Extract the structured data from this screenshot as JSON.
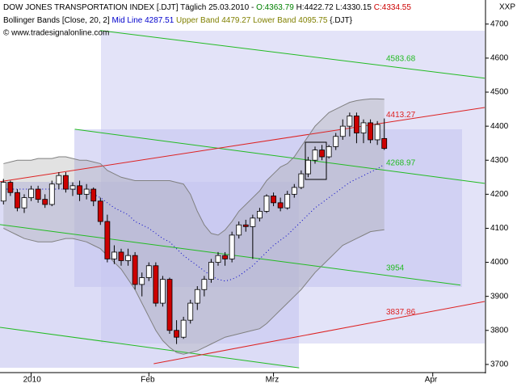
{
  "chart_data": {
    "type": "candlestick",
    "title": "DOW JONES TRANSPORTATION INDEX [.DJT]",
    "subtitle": "Täglich 25.03.2010 -",
    "ohlc_labels": [
      {
        "text": "O:4363.79",
        "color": "#008000"
      },
      {
        "text": "H:4422.72 L:4330.15",
        "color": "#000000"
      },
      {
        "text": "C:4334.55",
        "color": "#cc0000"
      }
    ],
    "indicator_labels": [
      {
        "text": "Bollinger Bands [Close, 20, 2]",
        "color": "#000000"
      },
      {
        "text": "Mid Line 4287.51",
        "color": "#0000cc"
      },
      {
        "text": "Upper Band 4479.27 Lower Band 4095.75",
        "color": "#808000"
      },
      {
        "text": "{.DJT}",
        "color": "#000000"
      }
    ],
    "copyright": "© www.tradesignalonline.com",
    "symbol": "XXP",
    "categories": [
      null,
      null,
      null,
      null,
      "2010",
      null,
      null,
      null,
      null,
      null,
      null,
      null,
      null,
      null,
      null,
      null,
      null,
      null,
      null,
      null,
      null,
      "Feb",
      null,
      null,
      null,
      null,
      null,
      null,
      null,
      null,
      null,
      null,
      null,
      null,
      null,
      null,
      null,
      null,
      null,
      "Mrz",
      null,
      null,
      null,
      null,
      null,
      null,
      null,
      null,
      null,
      null,
      null,
      null,
      null,
      null,
      null,
      null,
      null,
      null,
      null,
      null,
      null,
      null,
      "Apr",
      null,
      null,
      null,
      null,
      null,
      null,
      null
    ],
    "open": [
      4180,
      4235,
      4205,
      4160,
      4190,
      4215,
      4185,
      4170,
      4230,
      4255,
      4215,
      4225,
      4200,
      4215,
      4180,
      4120,
      4010,
      4030,
      4005,
      4020,
      3935,
      3955,
      3990,
      3880,
      3950,
      3800,
      3780,
      3830,
      3880,
      3920,
      3950,
      4000,
      4020,
      4010,
      4080,
      4110,
      4105,
      4130,
      4150,
      4195,
      4175,
      4160,
      4200,
      4220,
      4260,
      4300,
      4330,
      4310,
      4340,
      4370,
      4400,
      4430,
      4380,
      4410,
      4360,
      4363.79,
      null,
      null,
      null,
      null,
      null,
      null,
      null,
      null,
      null,
      null,
      null,
      null,
      null,
      null
    ],
    "high": [
      4245,
      4240,
      4215,
      4200,
      4225,
      4225,
      4200,
      4240,
      4265,
      4265,
      4235,
      4240,
      4230,
      4220,
      4190,
      4140,
      4050,
      4040,
      4040,
      4030,
      3970,
      4000,
      4000,
      3960,
      3955,
      3830,
      3840,
      3890,
      3930,
      3960,
      4010,
      4030,
      4030,
      4090,
      4120,
      4125,
      4140,
      4160,
      4200,
      4205,
      4190,
      4210,
      4230,
      4270,
      4310,
      4340,
      4345,
      4345,
      4380,
      4420,
      4440,
      4440,
      4420,
      4420,
      4415,
      4422.72,
      null,
      null,
      null,
      null,
      null,
      null,
      null,
      null,
      null,
      null,
      null,
      null,
      null,
      null
    ],
    "low": [
      4170,
      4195,
      4150,
      4145,
      4180,
      4175,
      4160,
      4165,
      4215,
      4205,
      4195,
      4180,
      4185,
      4165,
      4110,
      4000,
      3995,
      3990,
      3990,
      3920,
      3900,
      3945,
      3870,
      3870,
      3790,
      3760,
      3775,
      3820,
      3860,
      3900,
      3940,
      3990,
      3990,
      4000,
      4070,
      4090,
      4010,
      4120,
      4145,
      4165,
      4150,
      4155,
      4190,
      4215,
      4250,
      4290,
      4300,
      4305,
      4330,
      4360,
      4370,
      4350,
      4350,
      4350,
      4345,
      4330.15,
      null,
      null,
      null,
      null,
      null,
      null,
      null,
      null,
      null,
      null,
      null,
      null,
      null,
      null
    ],
    "close": [
      4235,
      4205,
      4160,
      4190,
      4215,
      4185,
      4170,
      4230,
      4255,
      4215,
      4225,
      4200,
      4215,
      4180,
      4120,
      4010,
      4030,
      4005,
      4020,
      3935,
      3955,
      3990,
      3880,
      3950,
      3800,
      3780,
      3830,
      3880,
      3920,
      3950,
      4000,
      4020,
      4010,
      4080,
      4110,
      4105,
      4130,
      4150,
      4195,
      4175,
      4160,
      4200,
      4220,
      4260,
      4300,
      4330,
      4310,
      4340,
      4370,
      4400,
      4430,
      4380,
      4410,
      4360,
      4405,
      4334.55,
      null,
      null,
      null,
      null,
      null,
      null,
      null,
      null,
      null,
      null,
      null,
      null,
      null,
      null
    ],
    "up_color": "#ffffff",
    "down_color": "#cc0000",
    "series": [
      {
        "name": "Upper Band",
        "color": "#808080",
        "values": [
          4290,
          4295,
          4300,
          4300,
          4300,
          4305,
          4305,
          4305,
          4310,
          4310,
          4305,
          4300,
          4300,
          4295,
          4290,
          4270,
          4260,
          4250,
          4245,
          4240,
          4240,
          4240,
          4240,
          4240,
          4240,
          4235,
          4230,
          4200,
          4150,
          4110,
          4085,
          4080,
          4095,
          4120,
          4150,
          4170,
          4190,
          4210,
          4240,
          4260,
          4280,
          4290,
          4310,
          4340,
          4370,
          4400,
          4420,
          4440,
          4450,
          4460,
          4470,
          4475,
          4478,
          4480,
          4480,
          4479.27,
          null,
          null,
          null,
          null,
          null,
          null,
          null,
          null,
          null,
          null,
          null,
          null,
          null,
          null
        ]
      },
      {
        "name": "Mid Line",
        "color": "#0000cc",
        "values": [
          4215,
          4215,
          4215,
          4215,
          4215,
          4215,
          4215,
          4215,
          4215,
          4215,
          4215,
          4212,
          4210,
          4200,
          4190,
          4175,
          4160,
          4150,
          4140,
          4120,
          4110,
          4100,
          4085,
          4070,
          4060,
          4040,
          4020,
          4005,
          3990,
          3975,
          3960,
          3950,
          3945,
          3950,
          3960,
          3975,
          3990,
          4010,
          4030,
          4050,
          4065,
          4080,
          4100,
          4120,
          4140,
          4160,
          4175,
          4190,
          4205,
          4220,
          4235,
          4245,
          4255,
          4265,
          4275,
          4287.51,
          null,
          null,
          null,
          null,
          null,
          null,
          null,
          null,
          null,
          null,
          null,
          null,
          null,
          null
        ]
      },
      {
        "name": "Lower Band",
        "color": "#808080",
        "values": [
          4100,
          4090,
          4080,
          4070,
          4065,
          4060,
          4060,
          4060,
          4065,
          4070,
          4070,
          4065,
          4060,
          4050,
          4040,
          4020,
          4000,
          3980,
          3950,
          3920,
          3880,
          3840,
          3800,
          3770,
          3750,
          3735,
          3730,
          3735,
          3740,
          3750,
          3760,
          3770,
          3780,
          3785,
          3790,
          3795,
          3800,
          3805,
          3820,
          3840,
          3860,
          3880,
          3900,
          3920,
          3945,
          3970,
          3990,
          4010,
          4030,
          4050,
          4060,
          4070,
          4080,
          4090,
          4093,
          4095.75,
          null,
          null,
          null,
          null,
          null,
          null,
          null,
          null,
          null,
          null,
          null,
          null,
          null,
          null
        ]
      }
    ],
    "trendlines": [
      {
        "color": "#22bb22",
        "from": 14,
        "to": 69.5,
        "start": 4681,
        "end": 4541,
        "label": 4583.68
      },
      {
        "color": "#22bb22",
        "from": 10.3,
        "to": 69.5,
        "start": 4391,
        "end": 4232,
        "label": 4268.97
      },
      {
        "color": "#22bb22",
        "from": -0.5,
        "to": 66,
        "start": 4111,
        "end": 3933,
        "label": 3954
      },
      {
        "color": "#22bb22",
        "from": -0.5,
        "to": 42.7,
        "start": 3809,
        "end": 3690
      },
      {
        "color": "#dd2222",
        "from": -0.5,
        "to": 69.5,
        "start": 4237,
        "end": 4455,
        "label": 4413.27
      },
      {
        "color": "#dd2222",
        "from": 21.7,
        "to": 69.5,
        "start": 3702,
        "end": 3885,
        "label": 3837.86
      }
    ],
    "ylim": [
      3676,
      4766
    ],
    "yticks": [
      3700,
      3800,
      3900,
      4000,
      4100,
      4200,
      4300,
      4400,
      4500,
      4600,
      4700
    ]
  }
}
